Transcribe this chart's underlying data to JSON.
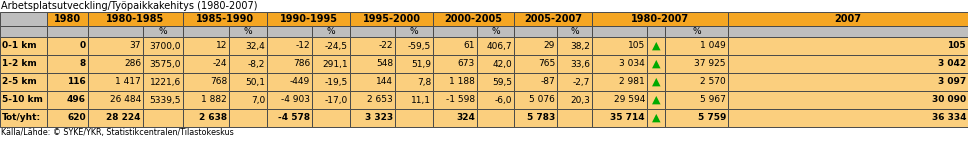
{
  "title": "Arbetsplatsutveckling/Työpaikkakehitys (1980-2007)",
  "footer": "Källa/Lähde: © SYKE/YKR, Statistikcentralen/Tilastokeskus",
  "row_labels": [
    "0-1 km",
    "1-2 km",
    "2-5 km",
    "5-10 km",
    "Tot/yht:"
  ],
  "rows": [
    [
      "0",
      "37",
      "3700,0",
      "12",
      "32,4",
      "-12",
      "-24,5",
      "-22",
      "-59,5",
      "61",
      "406,7",
      "29",
      "38,2",
      "105",
      "1 049",
      "105"
    ],
    [
      "8",
      "286",
      "3575,0",
      "-24",
      "-8,2",
      "786",
      "291,1",
      "548",
      "51,9",
      "673",
      "42,0",
      "765",
      "33,6",
      "3 034",
      "37 925",
      "3 042"
    ],
    [
      "116",
      "1 417",
      "1221,6",
      "768",
      "50,1",
      "-449",
      "-19,5",
      "144",
      "7,8",
      "1 188",
      "59,5",
      "-87",
      "-2,7",
      "2 981",
      "2 570",
      "3 097"
    ],
    [
      "496",
      "26 484",
      "5339,5",
      "1 882",
      "7,0",
      "-4 903",
      "-17,0",
      "2 653",
      "11,1",
      "-1 598",
      "-6,0",
      "5 076",
      "20,3",
      "29 594",
      "5 967",
      "30 090"
    ],
    [
      "620",
      "28 224",
      "",
      "2 638",
      "",
      "-4 578",
      "",
      "3 323",
      "",
      "324",
      "",
      "5 783",
      "",
      "35 714",
      "5 759",
      "36 334"
    ]
  ],
  "color_orange": "#F5A623",
  "color_light_orange": "#FBCF7E",
  "color_gray": "#BEBEBE",
  "color_white": "#FFFFFF",
  "color_green_arrow": "#00AA00",
  "color_border": "#4A4A4A",
  "col_group_headers": [
    "",
    "1980",
    "1980-1985",
    "1985-1990",
    "1990-1995",
    "1995-2000",
    "2000-2005",
    "2005-2007",
    "1980-2007",
    "2007"
  ],
  "title_fontsize": 7.0,
  "footer_fontsize": 5.8,
  "cell_fontsize": 6.5,
  "header_fontsize": 7.0
}
